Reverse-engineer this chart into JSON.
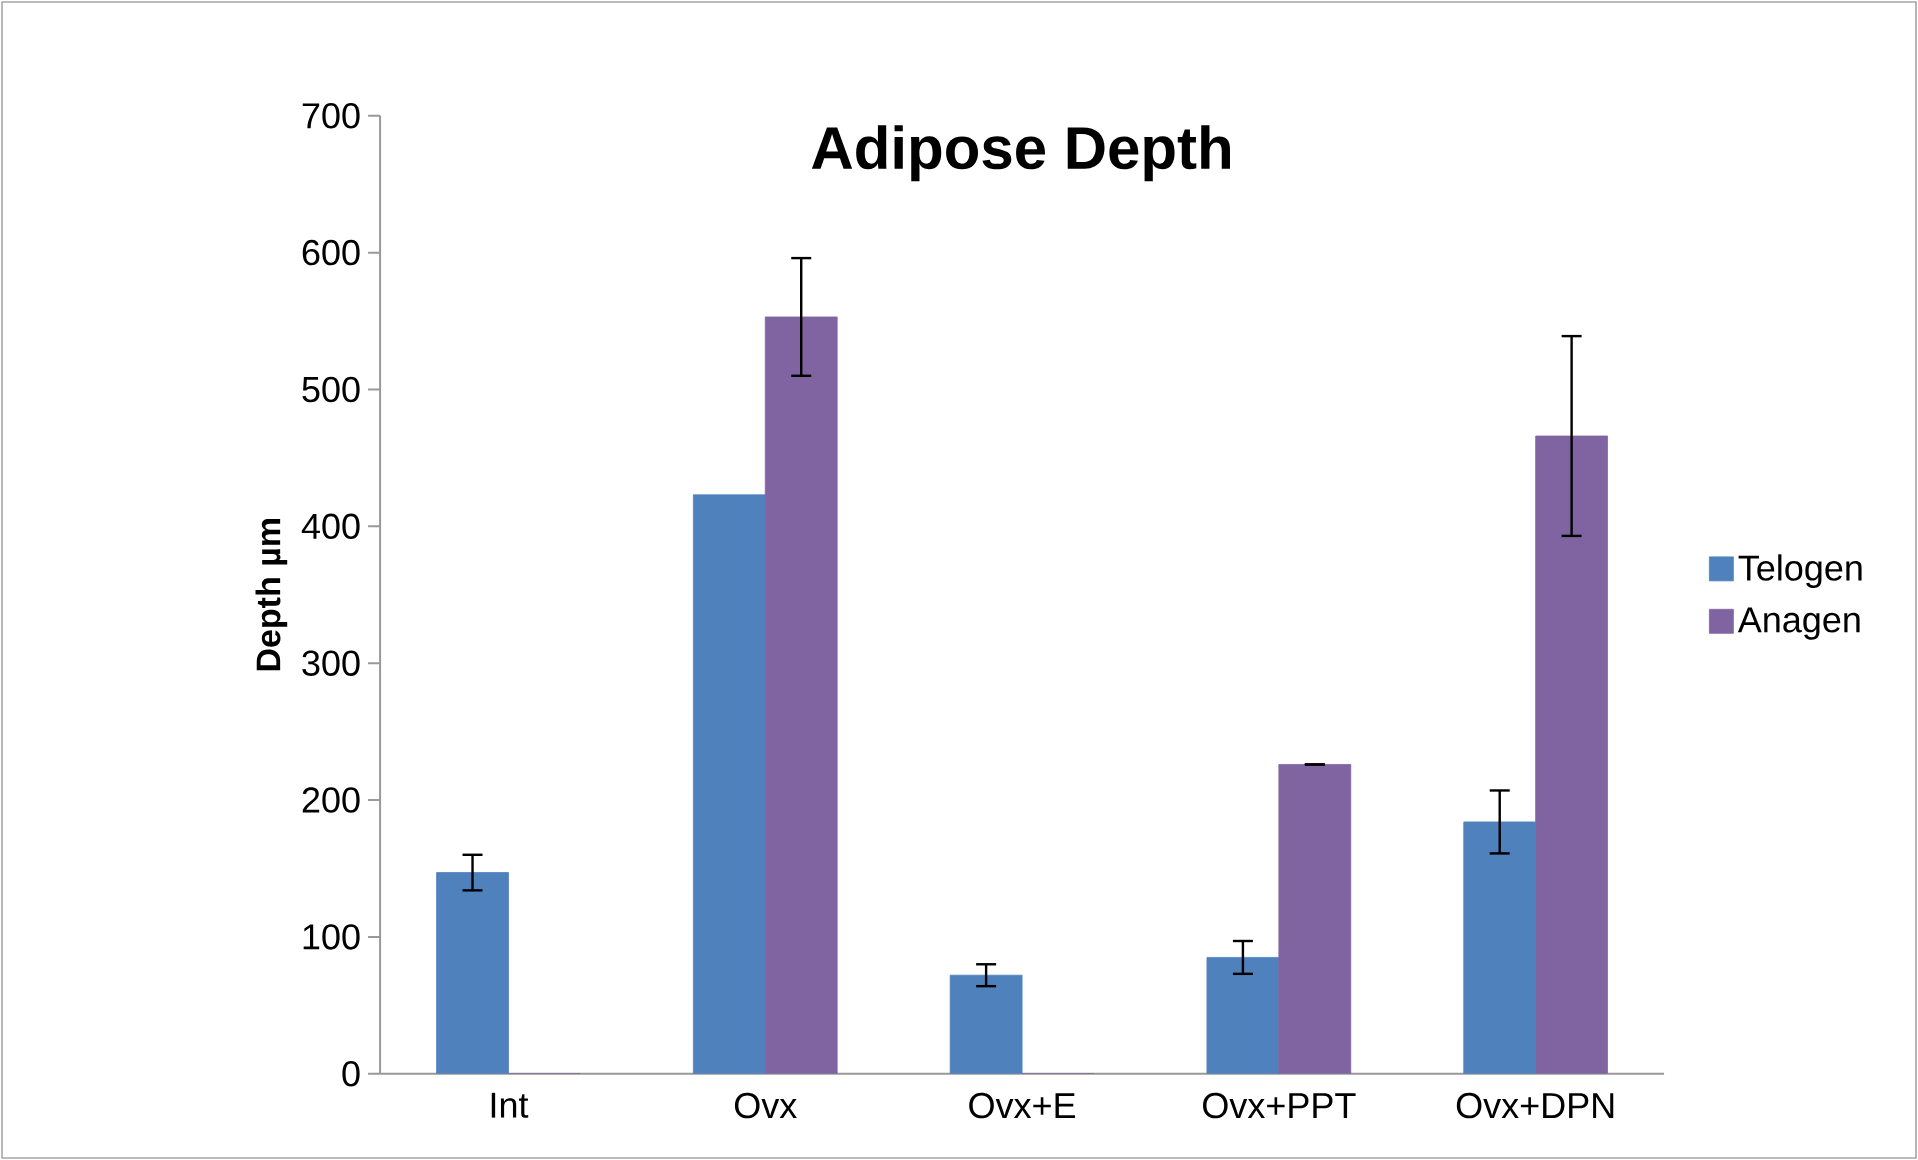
{
  "chart_data": {
    "type": "bar",
    "title": "Adipose Depth",
    "ylabel": "Depth µm",
    "categories": [
      "Int",
      "Ovx",
      "Ovx+E",
      "Ovx+PPT",
      "Ovx+DPN"
    ],
    "series": [
      {
        "name": "Telogen",
        "color": "#4f81bd",
        "values": [
          147,
          423,
          72,
          85,
          184
        ],
        "errors": [
          13,
          null,
          8,
          12,
          23
        ]
      },
      {
        "name": "Anagen",
        "color": "#8064a2",
        "values": [
          0,
          553,
          0,
          226,
          466
        ],
        "errors": [
          null,
          43,
          null,
          0,
          73
        ]
      }
    ],
    "ylim": [
      0,
      700
    ],
    "yticks": [
      0,
      100,
      200,
      300,
      400,
      500,
      600,
      700
    ],
    "legend": "right"
  }
}
